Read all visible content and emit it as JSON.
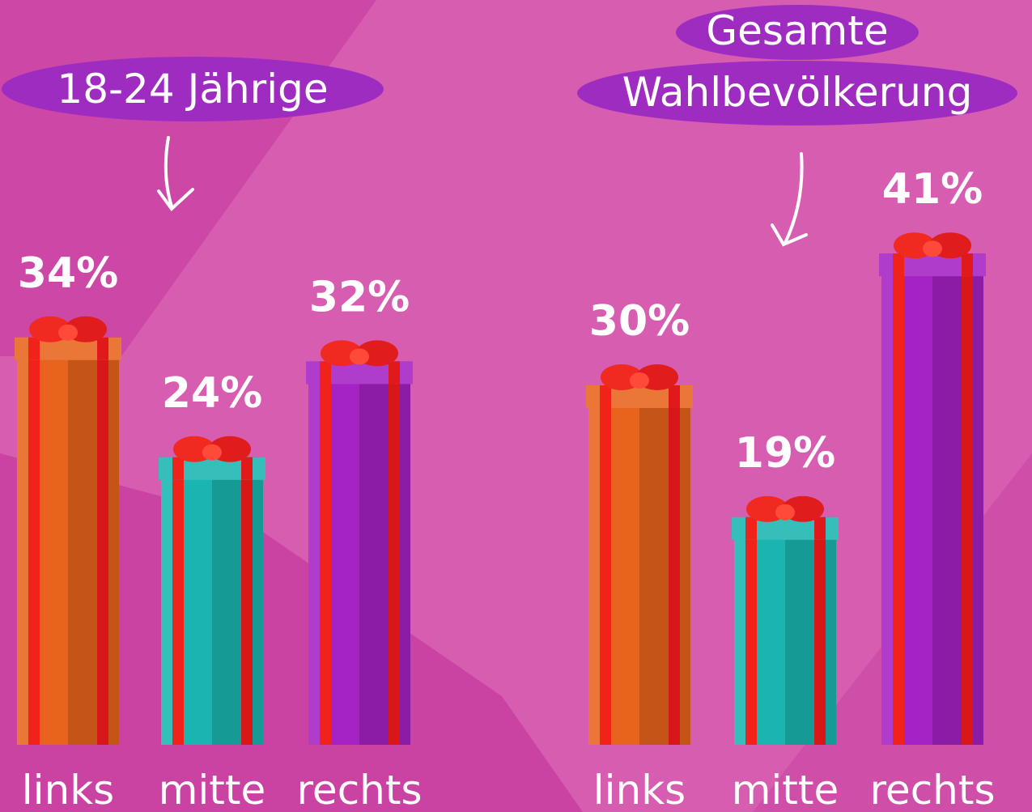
{
  "chart_data": [
    {
      "type": "bar",
      "title": "18-24 Jährige",
      "categories": [
        "links",
        "mitte",
        "rechts"
      ],
      "values": [
        34,
        24,
        32
      ],
      "value_labels": [
        "34%",
        "24%",
        "32%"
      ],
      "colors": [
        "#e8631c",
        "#1bb5b1",
        "#a522c4"
      ]
    },
    {
      "type": "bar",
      "title": "Gesamte Wahlbevölkerung",
      "categories": [
        "links",
        "mitte",
        "rechts"
      ],
      "values": [
        30,
        19,
        41
      ],
      "value_labels": [
        "30%",
        "19%",
        "41%"
      ],
      "colors": [
        "#e8631c",
        "#1bb5b1",
        "#a522c4"
      ]
    }
  ]
}
